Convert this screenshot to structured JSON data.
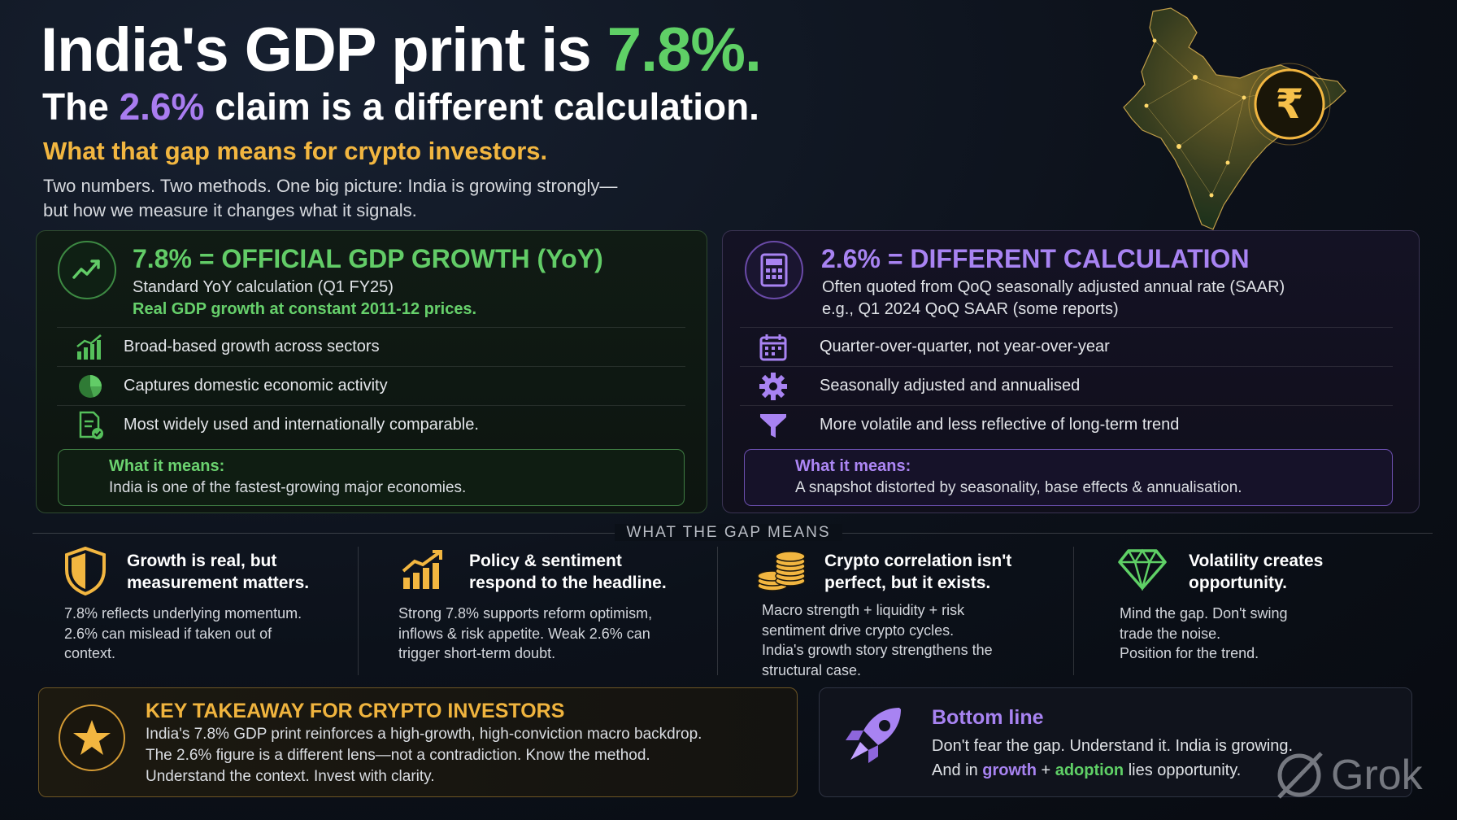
{
  "header": {
    "title_prefix": "India's GDP print is ",
    "title_highlight": "7.8%.",
    "subtitle_prefix": "The ",
    "subtitle_highlight": "2.6%",
    "subtitle_suffix": " claim is a different calculation.",
    "tagline": "What that gap means for crypto investors.",
    "intro_line1": "Two numbers. Two methods. One big picture: India is growing strongly—",
    "intro_line2": "but how we measure it changes what it signals."
  },
  "left_panel": {
    "title": "7.8% = OFFICIAL GDP GROWTH (YoY)",
    "sub1": "Standard YoY calculation (Q1 FY25)",
    "sub2": "Real GDP growth at constant 2011-12 prices.",
    "items": [
      {
        "icon": "bar-chart-up-icon",
        "label": "Broad-based growth across sectors"
      },
      {
        "icon": "pie-chart-icon",
        "label": "Captures domestic economic activity"
      },
      {
        "icon": "document-check-icon",
        "label": "Most widely used and internationally comparable."
      }
    ],
    "means_label": "What it means:",
    "means_text": "India is one of the fastest-growing major economies."
  },
  "right_panel": {
    "title": "2.6% = DIFFERENT CALCULATION",
    "sub1": "Often quoted from QoQ seasonally adjusted annual rate (SAAR)",
    "sub2": "e.g., Q1 2024 QoQ SAAR (some reports)",
    "items": [
      {
        "icon": "calendar-icon",
        "label": "Quarter-over-quarter, not year-over-year"
      },
      {
        "icon": "gear-icon",
        "label": "Seasonally adjusted and annualised"
      },
      {
        "icon": "funnel-icon",
        "label": "More volatile and less reflective of long-term trend"
      }
    ],
    "means_label": "What it means:",
    "means_text": "A snapshot distorted by seasonality, base effects & annualisation."
  },
  "gap_section": {
    "label": "WHAT THE GAP MEANS",
    "columns": [
      {
        "icon": "shield-icon",
        "title1": "Growth is real, but",
        "title2": "measurement matters.",
        "body": [
          "7.8% reflects underlying momentum.",
          "2.6% can mislead if taken out of",
          "context."
        ]
      },
      {
        "icon": "growth-arrow-icon",
        "title1": "Policy & sentiment",
        "title2": "respond to the headline.",
        "body": [
          "Strong 7.8% supports reform optimism,",
          "inflows & risk appetite. Weak 2.6% can",
          "trigger short-term doubt."
        ]
      },
      {
        "icon": "coins-icon",
        "title1": "Crypto correlation isn't",
        "title2": "perfect, but it exists.",
        "body": [
          "Macro strength + liquidity + risk",
          "sentiment drive crypto cycles.",
          "India's growth story strengthens the",
          "structural case."
        ]
      },
      {
        "icon": "diamond-icon",
        "title1": "Volatility creates",
        "title2": "opportunity.",
        "body": [
          "Mind the gap. Don't swing",
          "trade the noise.",
          "Position for the trend."
        ]
      }
    ]
  },
  "key_takeaway": {
    "title": "KEY TAKEAWAY FOR CRYPTO INVESTORS",
    "line1": "India's 7.8% GDP print reinforces a high-growth, high-conviction macro backdrop.",
    "line2": "The 2.6% figure is a different lens—not a contradiction. Know the method.",
    "line3": "Understand the context. Invest with clarity."
  },
  "bottom_line": {
    "title": "Bottom line",
    "line1": "Don't fear the gap. Understand it. India is growing.",
    "line2_prefix": "And in ",
    "line2_growth": "growth",
    "line2_plus": " + ",
    "line2_adoption": "adoption",
    "line2_suffix": " lies opportunity."
  },
  "watermark": "Grok",
  "colors": {
    "green": "#5fd066",
    "purple": "#a97cf0",
    "gold": "#f2b640"
  }
}
